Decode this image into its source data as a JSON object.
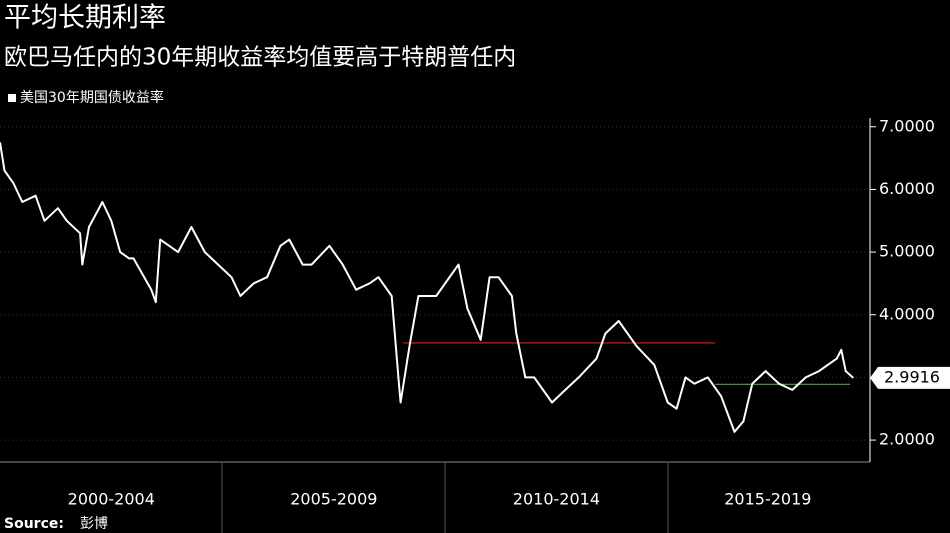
{
  "chart_data": {
    "type": "line",
    "title": "平均长期利率",
    "subtitle": "欧巴马任内的30年期收益率均值要高于特朗普任内",
    "source_label": "Source:",
    "source": "彭博",
    "xlim": [
      2000,
      2019.5
    ],
    "xticks": [
      {
        "value": 2002.5,
        "label": "2000-2004"
      },
      {
        "value": 2007.5,
        "label": "2005-2009"
      },
      {
        "value": 2012.5,
        "label": "2010-2014"
      },
      {
        "value": 2017.25,
        "label": "2015-2019"
      }
    ],
    "ylim": [
      1.65,
      7.14
    ],
    "yticks": [
      {
        "value": 2,
        "label": "2.0000"
      },
      {
        "value": 3,
        "label": "3.0000"
      },
      {
        "value": 4,
        "label": "4.0000"
      },
      {
        "value": 5,
        "label": "5.0000"
      },
      {
        "value": 6,
        "label": "6.0000"
      },
      {
        "value": 7,
        "label": "7.0000"
      }
    ],
    "series": [
      {
        "name": "美国30年期国债收益率",
        "color": "#ffffff",
        "x": [
          2000.0,
          2000.1,
          2000.3,
          2000.5,
          2000.8,
          2001.0,
          2001.3,
          2001.5,
          2001.8,
          2001.85,
          2002.0,
          2002.3,
          2002.5,
          2002.7,
          2002.9,
          2003.0,
          2003.4,
          2003.5,
          2003.6,
          2004.0,
          2004.3,
          2004.6,
          2004.9,
          2005.2,
          2005.4,
          2005.7,
          2006.0,
          2006.3,
          2006.5,
          2006.8,
          2007.0,
          2007.4,
          2007.7,
          2008.0,
          2008.3,
          2008.5,
          2008.8,
          2008.95,
          2009.0,
          2009.2,
          2009.4,
          2009.8,
          2010.3,
          2010.5,
          2010.8,
          2011.0,
          2011.2,
          2011.5,
          2011.6,
          2011.8,
          2012.0,
          2012.4,
          2012.7,
          2013.0,
          2013.4,
          2013.6,
          2013.9,
          2014.3,
          2014.7,
          2015.0,
          2015.2,
          2015.4,
          2015.6,
          2015.9,
          2016.2,
          2016.5,
          2016.7,
          2016.9,
          2017.2,
          2017.5,
          2017.8,
          2018.1,
          2018.4,
          2018.8,
          2018.9,
          2019.0,
          2019.17
        ],
        "values": [
          6.75,
          6.3,
          6.1,
          5.8,
          5.9,
          5.5,
          5.7,
          5.5,
          5.3,
          4.8,
          5.4,
          5.8,
          5.5,
          5.0,
          4.9,
          4.9,
          4.4,
          4.2,
          5.2,
          5.0,
          5.4,
          5.0,
          4.8,
          4.6,
          4.3,
          4.5,
          4.6,
          5.1,
          5.2,
          4.8,
          4.8,
          5.1,
          4.8,
          4.4,
          4.5,
          4.6,
          4.3,
          3.0,
          2.6,
          3.5,
          4.3,
          4.3,
          4.8,
          4.1,
          3.6,
          4.6,
          4.6,
          4.3,
          3.7,
          3.0,
          3.0,
          2.6,
          2.8,
          3.0,
          3.3,
          3.7,
          3.9,
          3.5,
          3.2,
          2.6,
          2.5,
          3.0,
          2.9,
          3.0,
          2.7,
          2.13,
          2.3,
          2.9,
          3.1,
          2.9,
          2.8,
          3.0,
          3.1,
          3.3,
          3.44,
          3.1,
          2.9916
        ]
      }
    ],
    "reference_lines": [
      {
        "value": 3.55,
        "x": [
          2009.06,
          2016.07
        ],
        "color": "#e0201b"
      },
      {
        "value": 2.89,
        "x": [
          2016.07,
          2019.1
        ],
        "color": "#3fae3f"
      }
    ]
  }
}
